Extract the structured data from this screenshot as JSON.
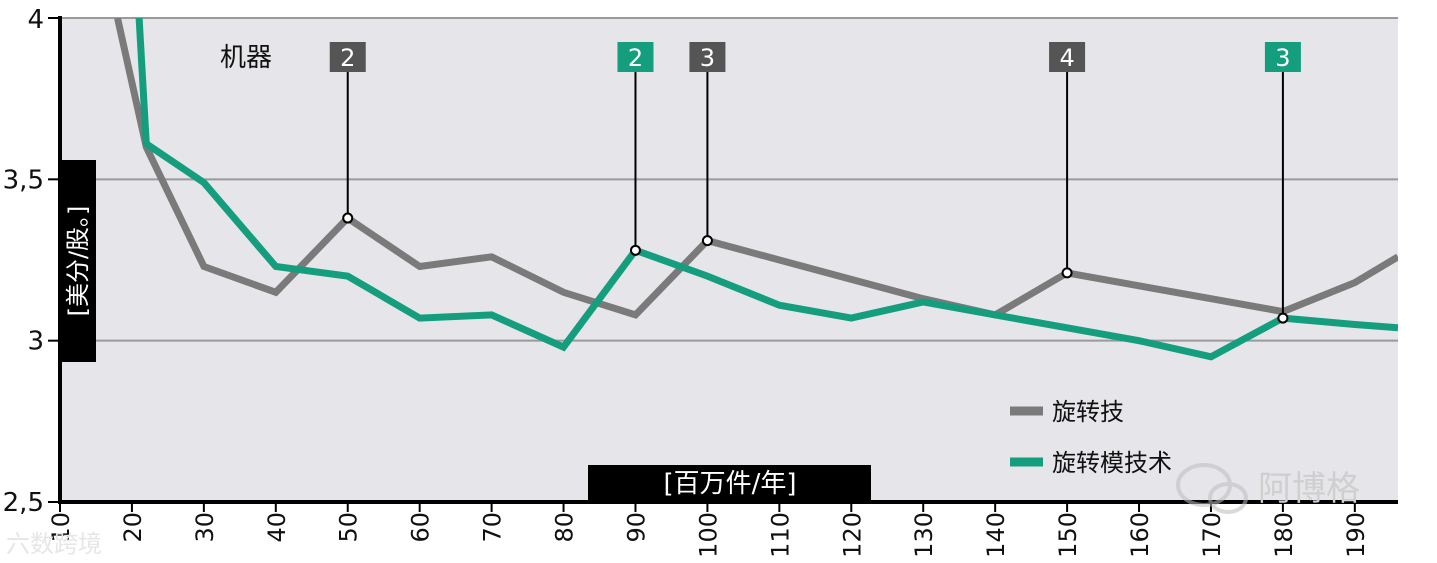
{
  "chart_data": {
    "type": "line",
    "y_axis_label": "[美分/股。]",
    "x_axis_label": "[百万件/年]",
    "top_left_label": "机器",
    "ylim": [
      2.5,
      4
    ],
    "xlim": [
      10,
      196
    ],
    "y_ticks": [
      "2,5",
      "3",
      "3,5",
      "4"
    ],
    "y_tick_values": [
      2.5,
      3,
      3.5,
      4
    ],
    "x_ticks": [
      "10",
      "20",
      "30",
      "40",
      "50",
      "60",
      "70",
      "80",
      "90",
      "100",
      "110",
      "120",
      "130",
      "140",
      "150",
      "160",
      "170",
      "180",
      "190"
    ],
    "grid": true,
    "legend_position": "bottom-right",
    "series": [
      {
        "name": "旋转技",
        "color": "#7a7a7a",
        "x": [
          18,
          22,
          30,
          40,
          50,
          60,
          70,
          80,
          90,
          100,
          110,
          120,
          130,
          140,
          150,
          160,
          170,
          180,
          190,
          196
        ],
        "y": [
          4.0,
          3.6,
          3.23,
          3.15,
          3.38,
          3.23,
          3.26,
          3.15,
          3.08,
          3.31,
          3.25,
          3.19,
          3.13,
          3.08,
          3.21,
          3.17,
          3.13,
          3.09,
          3.18,
          3.26
        ]
      },
      {
        "name": "旋转模技术",
        "color": "#159e7e",
        "x": [
          21,
          22,
          30,
          40,
          50,
          60,
          70,
          80,
          90,
          100,
          110,
          120,
          130,
          140,
          150,
          160,
          170,
          180,
          190,
          196
        ],
        "y": [
          4.0,
          3.61,
          3.49,
          3.23,
          3.2,
          3.07,
          3.08,
          2.98,
          3.28,
          3.2,
          3.11,
          3.07,
          3.12,
          3.08,
          3.04,
          3.0,
          2.95,
          3.07,
          3.05,
          3.04
        ]
      }
    ],
    "annotations": [
      {
        "label": "2",
        "series": 0,
        "x": 50,
        "y": 3.38
      },
      {
        "label": "2",
        "series": 1,
        "x": 90,
        "y": 3.28
      },
      {
        "label": "3",
        "series": 0,
        "x": 100,
        "y": 3.31
      },
      {
        "label": "4",
        "series": 0,
        "x": 150,
        "y": 3.21
      },
      {
        "label": "3",
        "series": 1,
        "x": 180,
        "y": 3.07
      }
    ]
  },
  "watermark": {
    "right_text": "阿博格",
    "bottom_left_text": "六数跨境"
  }
}
